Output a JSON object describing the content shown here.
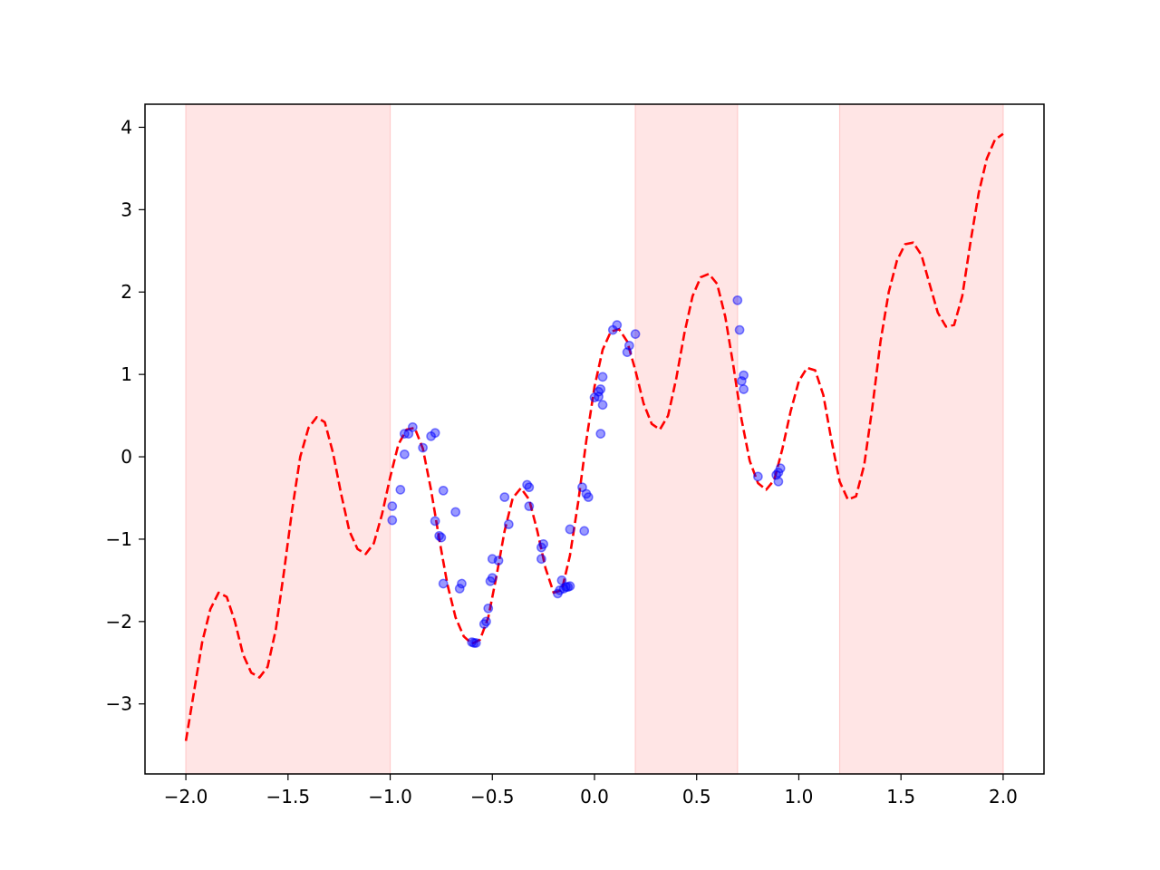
{
  "chart_data": {
    "type": "scatter",
    "title": "",
    "xlabel": "",
    "ylabel": "",
    "xlim": [
      -2.2,
      2.2
    ],
    "ylim": [
      -3.85,
      4.28
    ],
    "grid": false,
    "legend": "none",
    "x_ticks": [
      -2.0,
      -1.5,
      -1.0,
      -0.5,
      0.0,
      0.5,
      1.0,
      1.5,
      2.0
    ],
    "x_tick_labels": [
      "−2.0",
      "−1.5",
      "−1.0",
      "−0.5",
      "0.0",
      "0.5",
      "1.0",
      "1.5",
      "2.0"
    ],
    "y_ticks": [
      -3,
      -2,
      -1,
      0,
      1,
      2,
      3,
      4
    ],
    "y_tick_labels": [
      "−3",
      "−2",
      "−1",
      "0",
      "1",
      "2",
      "3",
      "4"
    ],
    "shaded_regions": [
      {
        "x_start": -2.0,
        "x_end": -1.0,
        "color": "#ffcccc"
      },
      {
        "x_start": 0.2,
        "x_end": 0.7,
        "color": "#ffcccc"
      },
      {
        "x_start": 1.2,
        "x_end": 2.0,
        "color": "#ffcccc"
      }
    ],
    "curve": {
      "style": "dashed",
      "color": "#ff0000",
      "points": [
        [
          -2.0,
          -3.45
        ],
        [
          -1.96,
          -2.85
        ],
        [
          -1.92,
          -2.25
        ],
        [
          -1.88,
          -1.85
        ],
        [
          -1.84,
          -1.65
        ],
        [
          -1.8,
          -1.7
        ],
        [
          -1.76,
          -2.0
        ],
        [
          -1.72,
          -2.4
        ],
        [
          -1.68,
          -2.62
        ],
        [
          -1.64,
          -2.68
        ],
        [
          -1.6,
          -2.55
        ],
        [
          -1.56,
          -2.1
        ],
        [
          -1.52,
          -1.4
        ],
        [
          -1.48,
          -0.65
        ],
        [
          -1.44,
          0.0
        ],
        [
          -1.4,
          0.35
        ],
        [
          -1.36,
          0.48
        ],
        [
          -1.32,
          0.42
        ],
        [
          -1.28,
          0.05
        ],
        [
          -1.24,
          -0.45
        ],
        [
          -1.2,
          -0.9
        ],
        [
          -1.16,
          -1.12
        ],
        [
          -1.12,
          -1.18
        ],
        [
          -1.08,
          -1.05
        ],
        [
          -1.04,
          -0.7
        ],
        [
          -1.0,
          -0.25
        ],
        [
          -0.96,
          0.15
        ],
        [
          -0.92,
          0.33
        ],
        [
          -0.88,
          0.35
        ],
        [
          -0.84,
          0.1
        ],
        [
          -0.8,
          -0.4
        ],
        [
          -0.76,
          -1.0
        ],
        [
          -0.72,
          -1.55
        ],
        [
          -0.68,
          -1.95
        ],
        [
          -0.64,
          -2.18
        ],
        [
          -0.6,
          -2.27
        ],
        [
          -0.56,
          -2.22
        ],
        [
          -0.52,
          -1.95
        ],
        [
          -0.48,
          -1.45
        ],
        [
          -0.44,
          -0.9
        ],
        [
          -0.4,
          -0.5
        ],
        [
          -0.36,
          -0.38
        ],
        [
          -0.32,
          -0.52
        ],
        [
          -0.28,
          -0.9
        ],
        [
          -0.24,
          -1.35
        ],
        [
          -0.2,
          -1.65
        ],
        [
          -0.16,
          -1.62
        ],
        [
          -0.12,
          -1.2
        ],
        [
          -0.08,
          -0.55
        ],
        [
          -0.04,
          0.2
        ],
        [
          0.0,
          0.85
        ],
        [
          0.04,
          1.3
        ],
        [
          0.08,
          1.52
        ],
        [
          0.12,
          1.55
        ],
        [
          0.16,
          1.4
        ],
        [
          0.2,
          1.05
        ],
        [
          0.24,
          0.65
        ],
        [
          0.28,
          0.4
        ],
        [
          0.32,
          0.33
        ],
        [
          0.36,
          0.5
        ],
        [
          0.4,
          0.95
        ],
        [
          0.44,
          1.5
        ],
        [
          0.48,
          1.95
        ],
        [
          0.52,
          2.18
        ],
        [
          0.56,
          2.22
        ],
        [
          0.6,
          2.1
        ],
        [
          0.64,
          1.7
        ],
        [
          0.68,
          1.1
        ],
        [
          0.72,
          0.45
        ],
        [
          0.76,
          -0.05
        ],
        [
          0.8,
          -0.32
        ],
        [
          0.84,
          -0.4
        ],
        [
          0.88,
          -0.28
        ],
        [
          0.92,
          0.1
        ],
        [
          0.96,
          0.55
        ],
        [
          1.0,
          0.92
        ],
        [
          1.04,
          1.08
        ],
        [
          1.08,
          1.05
        ],
        [
          1.12,
          0.75
        ],
        [
          1.16,
          0.2
        ],
        [
          1.2,
          -0.3
        ],
        [
          1.24,
          -0.52
        ],
        [
          1.28,
          -0.48
        ],
        [
          1.32,
          -0.1
        ],
        [
          1.36,
          0.6
        ],
        [
          1.4,
          1.4
        ],
        [
          1.44,
          2.0
        ],
        [
          1.48,
          2.38
        ],
        [
          1.52,
          2.58
        ],
        [
          1.56,
          2.6
        ],
        [
          1.6,
          2.45
        ],
        [
          1.64,
          2.1
        ],
        [
          1.68,
          1.75
        ],
        [
          1.72,
          1.58
        ],
        [
          1.76,
          1.6
        ],
        [
          1.8,
          1.95
        ],
        [
          1.84,
          2.6
        ],
        [
          1.88,
          3.2
        ],
        [
          1.92,
          3.62
        ],
        [
          1.96,
          3.85
        ],
        [
          2.0,
          3.92
        ]
      ]
    },
    "points_series": {
      "color": "#0000ff",
      "points": [
        [
          -0.99,
          -0.77
        ],
        [
          -0.99,
          -0.6
        ],
        [
          -0.95,
          -0.4
        ],
        [
          -0.93,
          0.03
        ],
        [
          -0.93,
          0.28
        ],
        [
          -0.91,
          0.28
        ],
        [
          -0.89,
          0.36
        ],
        [
          -0.84,
          0.11
        ],
        [
          -0.8,
          0.25
        ],
        [
          -0.78,
          0.29
        ],
        [
          -0.78,
          -0.78
        ],
        [
          -0.76,
          -0.96
        ],
        [
          -0.75,
          -0.98
        ],
        [
          -0.74,
          -1.54
        ],
        [
          -0.74,
          -0.41
        ],
        [
          -0.68,
          -0.67
        ],
        [
          -0.66,
          -1.6
        ],
        [
          -0.65,
          -1.54
        ],
        [
          -0.6,
          -2.25
        ],
        [
          -0.59,
          -2.26
        ],
        [
          -0.58,
          -2.26
        ],
        [
          -0.54,
          -2.03
        ],
        [
          -0.53,
          -2.0
        ],
        [
          -0.52,
          -1.84
        ],
        [
          -0.51,
          -1.51
        ],
        [
          -0.5,
          -1.47
        ],
        [
          -0.5,
          -1.24
        ],
        [
          -0.47,
          -1.26
        ],
        [
          -0.44,
          -0.49
        ],
        [
          -0.42,
          -0.82
        ],
        [
          -0.33,
          -0.34
        ],
        [
          -0.32,
          -0.37
        ],
        [
          -0.32,
          -0.6
        ],
        [
          -0.26,
          -1.1
        ],
        [
          -0.26,
          -1.24
        ],
        [
          -0.25,
          -1.06
        ],
        [
          -0.18,
          -1.66
        ],
        [
          -0.17,
          -1.62
        ],
        [
          -0.16,
          -1.5
        ],
        [
          -0.15,
          -1.6
        ],
        [
          -0.14,
          -1.58
        ],
        [
          -0.13,
          -1.58
        ],
        [
          -0.12,
          -1.57
        ],
        [
          -0.12,
          -0.88
        ],
        [
          -0.06,
          -0.37
        ],
        [
          -0.05,
          -0.9
        ],
        [
          -0.04,
          -0.45
        ],
        [
          -0.03,
          -0.49
        ],
        [
          0.0,
          0.72
        ],
        [
          0.02,
          0.73
        ],
        [
          0.02,
          0.79
        ],
        [
          0.03,
          0.28
        ],
        [
          0.03,
          0.82
        ],
        [
          0.04,
          0.63
        ],
        [
          0.04,
          0.97
        ],
        [
          0.09,
          1.54
        ],
        [
          0.11,
          1.6
        ],
        [
          0.16,
          1.27
        ],
        [
          0.17,
          1.35
        ],
        [
          0.2,
          1.49
        ],
        [
          0.7,
          1.9
        ],
        [
          0.71,
          1.54
        ],
        [
          0.72,
          0.92
        ],
        [
          0.73,
          0.99
        ],
        [
          0.73,
          0.82
        ],
        [
          0.8,
          -0.24
        ],
        [
          0.89,
          -0.22
        ],
        [
          0.9,
          -0.19
        ],
        [
          0.9,
          -0.3
        ],
        [
          0.91,
          -0.14
        ]
      ]
    }
  }
}
